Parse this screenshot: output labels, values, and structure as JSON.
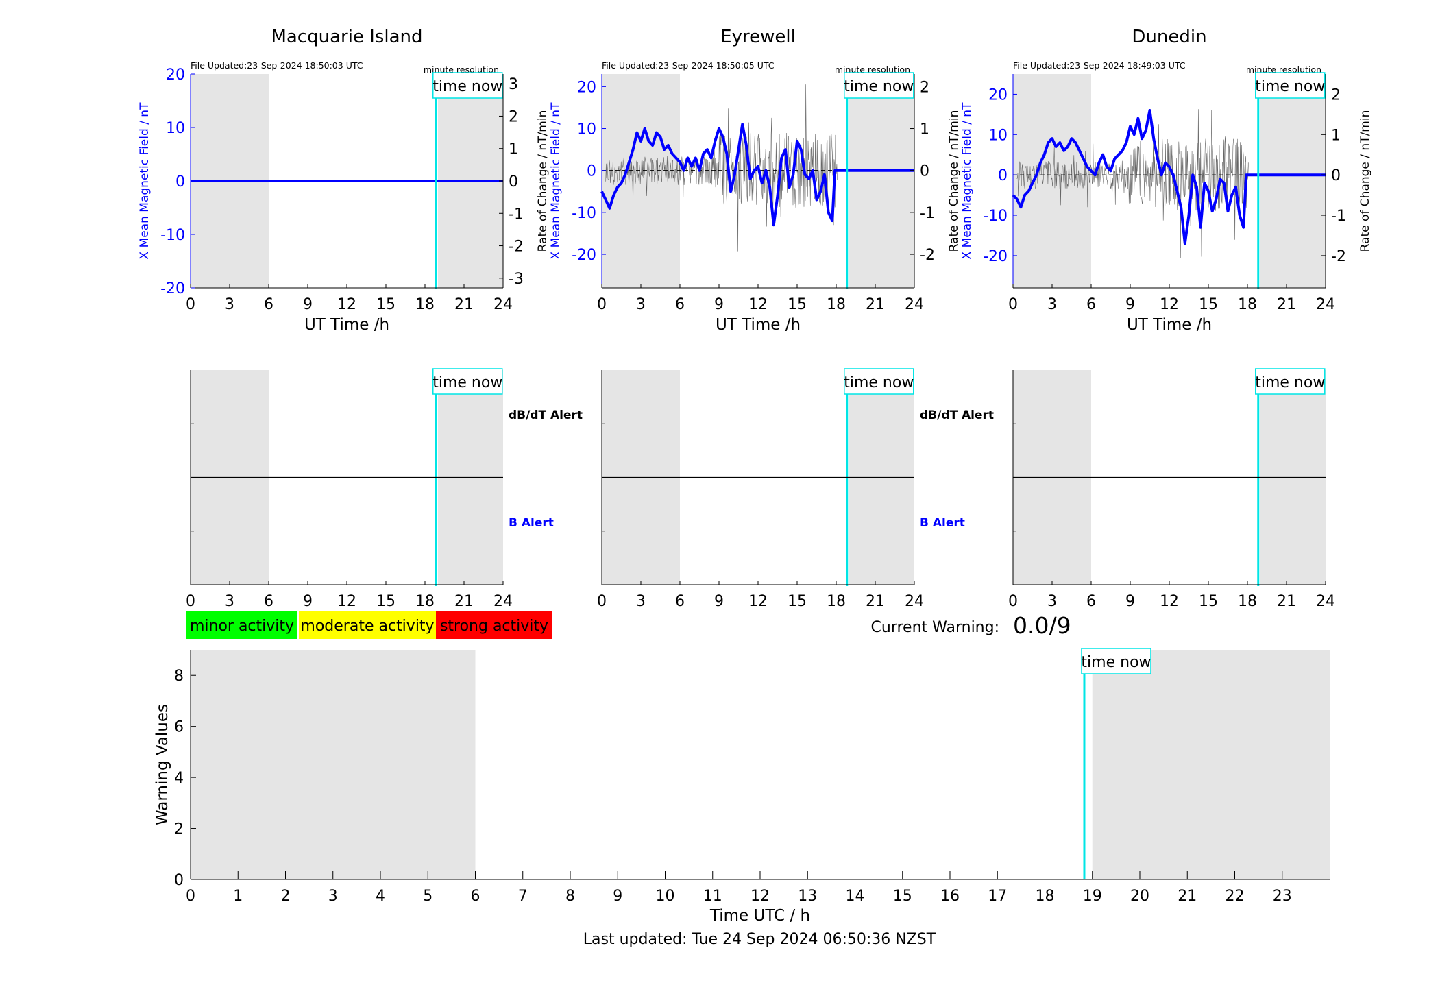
{
  "colors": {
    "field": "#0000ff",
    "rate": "#666666",
    "now_line": "#00e5e5",
    "night_shade": "#e5e5e5",
    "minor": "#00ff00",
    "moderate": "#ffff00",
    "strong": "#ff0000"
  },
  "panel_common": {
    "x_label": "UT Time /h",
    "x_ticks": [
      0,
      3,
      6,
      9,
      12,
      15,
      18,
      21,
      24
    ],
    "y_left_label": "X Mean Magnetic Field / nT",
    "y_right_label": "Rate of Change / nT/min",
    "resolution_note": "minute resolution",
    "now_label": "time now",
    "night_ranges": [
      [
        0,
        6
      ],
      [
        19,
        24
      ]
    ],
    "now_hour": 18.83,
    "alert_dbdt": "dB/dT Alert",
    "alert_b": "B Alert"
  },
  "stations": [
    {
      "name": "Macquarie Island",
      "file_updated": "File Updated:23-Sep-2024 18:50:03 UTC"
    },
    {
      "name": "Eyrewell",
      "file_updated": "File Updated:23-Sep-2024 18:50:05 UTC"
    },
    {
      "name": "Dunedin",
      "file_updated": "File Updated:23-Sep-2024 18:49:03 UTC"
    }
  ],
  "legend": {
    "minor": "minor activity",
    "moderate": "moderate activity",
    "strong": "strong activity"
  },
  "warning": {
    "label": "Current Warning:",
    "value": "0.0/9"
  },
  "footer": {
    "last_updated": "Last updated: Tue 24 Sep 2024 06:50:36 NZST"
  },
  "chart_data": [
    {
      "type": "line",
      "title": "Macquarie Island",
      "xlabel": "UT Time /h",
      "ylabel": "X Mean Magnetic Field / nT",
      "y2label": "Rate of Change / nT/min",
      "xlim": [
        0,
        24
      ],
      "ylim": [
        -20,
        20
      ],
      "y2lim": [
        -3.3,
        3.3
      ],
      "y_ticks": [
        -20,
        -10,
        0,
        10,
        20
      ],
      "y2_ticks": [
        -3,
        -2,
        -1,
        0,
        1,
        2,
        3
      ],
      "series": [
        {
          "x": [
            0,
            6,
            12,
            18,
            24
          ],
          "values": [
            0,
            0,
            0,
            0,
            0
          ]
        }
      ]
    },
    {
      "type": "line",
      "title": "Eyrewell",
      "xlabel": "UT Time /h",
      "ylabel": "X Mean Magnetic Field / nT",
      "y2label": "Rate of Change / nT/min",
      "xlim": [
        0,
        24
      ],
      "ylim": [
        -28,
        23
      ],
      "y2lim": [
        -2.8,
        2.3
      ],
      "y_ticks": [
        -20,
        -10,
        0,
        10,
        20
      ],
      "y2_ticks": [
        -2,
        -1,
        0,
        1,
        2
      ],
      "series": [
        {
          "x": [
            0,
            0.3,
            0.6,
            0.9,
            1.2,
            1.5,
            1.8,
            2.1,
            2.4,
            2.7,
            3.0,
            3.3,
            3.6,
            3.9,
            4.2,
            4.5,
            4.8,
            5.1,
            5.4,
            5.7,
            6.0,
            6.3,
            6.6,
            6.9,
            7.2,
            7.5,
            7.8,
            8.1,
            8.4,
            8.7,
            9.0,
            9.3,
            9.6,
            9.9,
            10.2,
            10.5,
            10.8,
            11.1,
            11.4,
            11.7,
            12.0,
            12.3,
            12.6,
            12.9,
            13.2,
            13.5,
            13.8,
            14.1,
            14.4,
            14.7,
            15.0,
            15.3,
            15.6,
            15.9,
            16.2,
            16.5,
            16.8,
            17.1,
            17.4,
            17.7,
            17.9,
            18.0,
            18.5,
            19.0,
            20.0,
            22.0,
            24.0
          ],
          "values": [
            -5,
            -7,
            -9,
            -6,
            -4,
            -3,
            -1,
            2,
            5,
            9,
            7,
            10,
            7,
            6,
            9,
            8,
            5,
            6,
            4,
            3,
            2,
            0,
            3,
            1,
            3,
            0,
            4,
            5,
            3,
            7,
            10,
            8,
            4,
            -5,
            -1,
            5,
            11,
            6,
            -2,
            0,
            1,
            -3,
            0,
            -4,
            -13,
            -6,
            3,
            5,
            -4,
            -1,
            7,
            5,
            -1,
            -2,
            0,
            -7,
            -5,
            -1,
            -10,
            -12,
            0,
            0,
            0,
            0,
            0,
            0,
            0
          ]
        }
      ]
    },
    {
      "type": "line",
      "title": "Dunedin",
      "xlabel": "UT Time /h",
      "ylabel": "X Mean Magnetic Field / nT",
      "y2label": "Rate of Change / nT/min",
      "xlim": [
        0,
        24
      ],
      "ylim": [
        -28,
        25
      ],
      "y2lim": [
        -2.8,
        2.5
      ],
      "y_ticks": [
        -20,
        -10,
        0,
        10,
        20
      ],
      "y2_ticks": [
        -2,
        -1,
        0,
        1,
        2
      ],
      "series": [
        {
          "x": [
            0,
            0.3,
            0.6,
            0.9,
            1.2,
            1.5,
            1.8,
            2.1,
            2.4,
            2.7,
            3.0,
            3.3,
            3.6,
            3.9,
            4.2,
            4.5,
            4.8,
            5.1,
            5.4,
            5.7,
            6.0,
            6.3,
            6.6,
            6.9,
            7.2,
            7.5,
            7.8,
            8.1,
            8.4,
            8.7,
            9.0,
            9.3,
            9.6,
            9.9,
            10.2,
            10.5,
            10.8,
            11.1,
            11.4,
            11.7,
            12.0,
            12.3,
            12.6,
            12.9,
            13.2,
            13.5,
            13.8,
            14.1,
            14.4,
            14.7,
            15.0,
            15.3,
            15.6,
            15.9,
            16.2,
            16.5,
            16.8,
            17.1,
            17.4,
            17.7,
            17.9,
            18.0,
            18.5,
            19.0,
            20.0,
            22.0,
            24.0
          ],
          "values": [
            -5,
            -6,
            -8,
            -5,
            -4,
            -2,
            0,
            3,
            5,
            8,
            9,
            7,
            8,
            6,
            7,
            9,
            8,
            6,
            4,
            2,
            1,
            0,
            3,
            5,
            2,
            1,
            4,
            5,
            6,
            8,
            12,
            10,
            14,
            9,
            11,
            16,
            9,
            4,
            0,
            3,
            2,
            0,
            -4,
            -8,
            -17,
            -10,
            0,
            -3,
            -13,
            -2,
            -4,
            -9,
            -6,
            -1,
            -2,
            -9,
            -5,
            -3,
            -10,
            -13,
            0,
            0,
            0,
            0,
            0,
            0,
            0
          ]
        }
      ]
    },
    {
      "type": "line",
      "title": "",
      "xlabel": "Time UTC / h",
      "ylabel": "Warning Values",
      "xlim": [
        0,
        24
      ],
      "ylim": [
        0,
        9
      ],
      "x_ticks": [
        0,
        1,
        2,
        3,
        4,
        5,
        6,
        7,
        8,
        9,
        10,
        11,
        12,
        13,
        14,
        15,
        16,
        17,
        18,
        19,
        20,
        21,
        22,
        23
      ],
      "y_ticks": [
        0,
        2,
        4,
        6,
        8
      ],
      "series": [
        {
          "x": [
            0,
            18.83
          ],
          "values": [
            0,
            0
          ]
        }
      ]
    }
  ]
}
